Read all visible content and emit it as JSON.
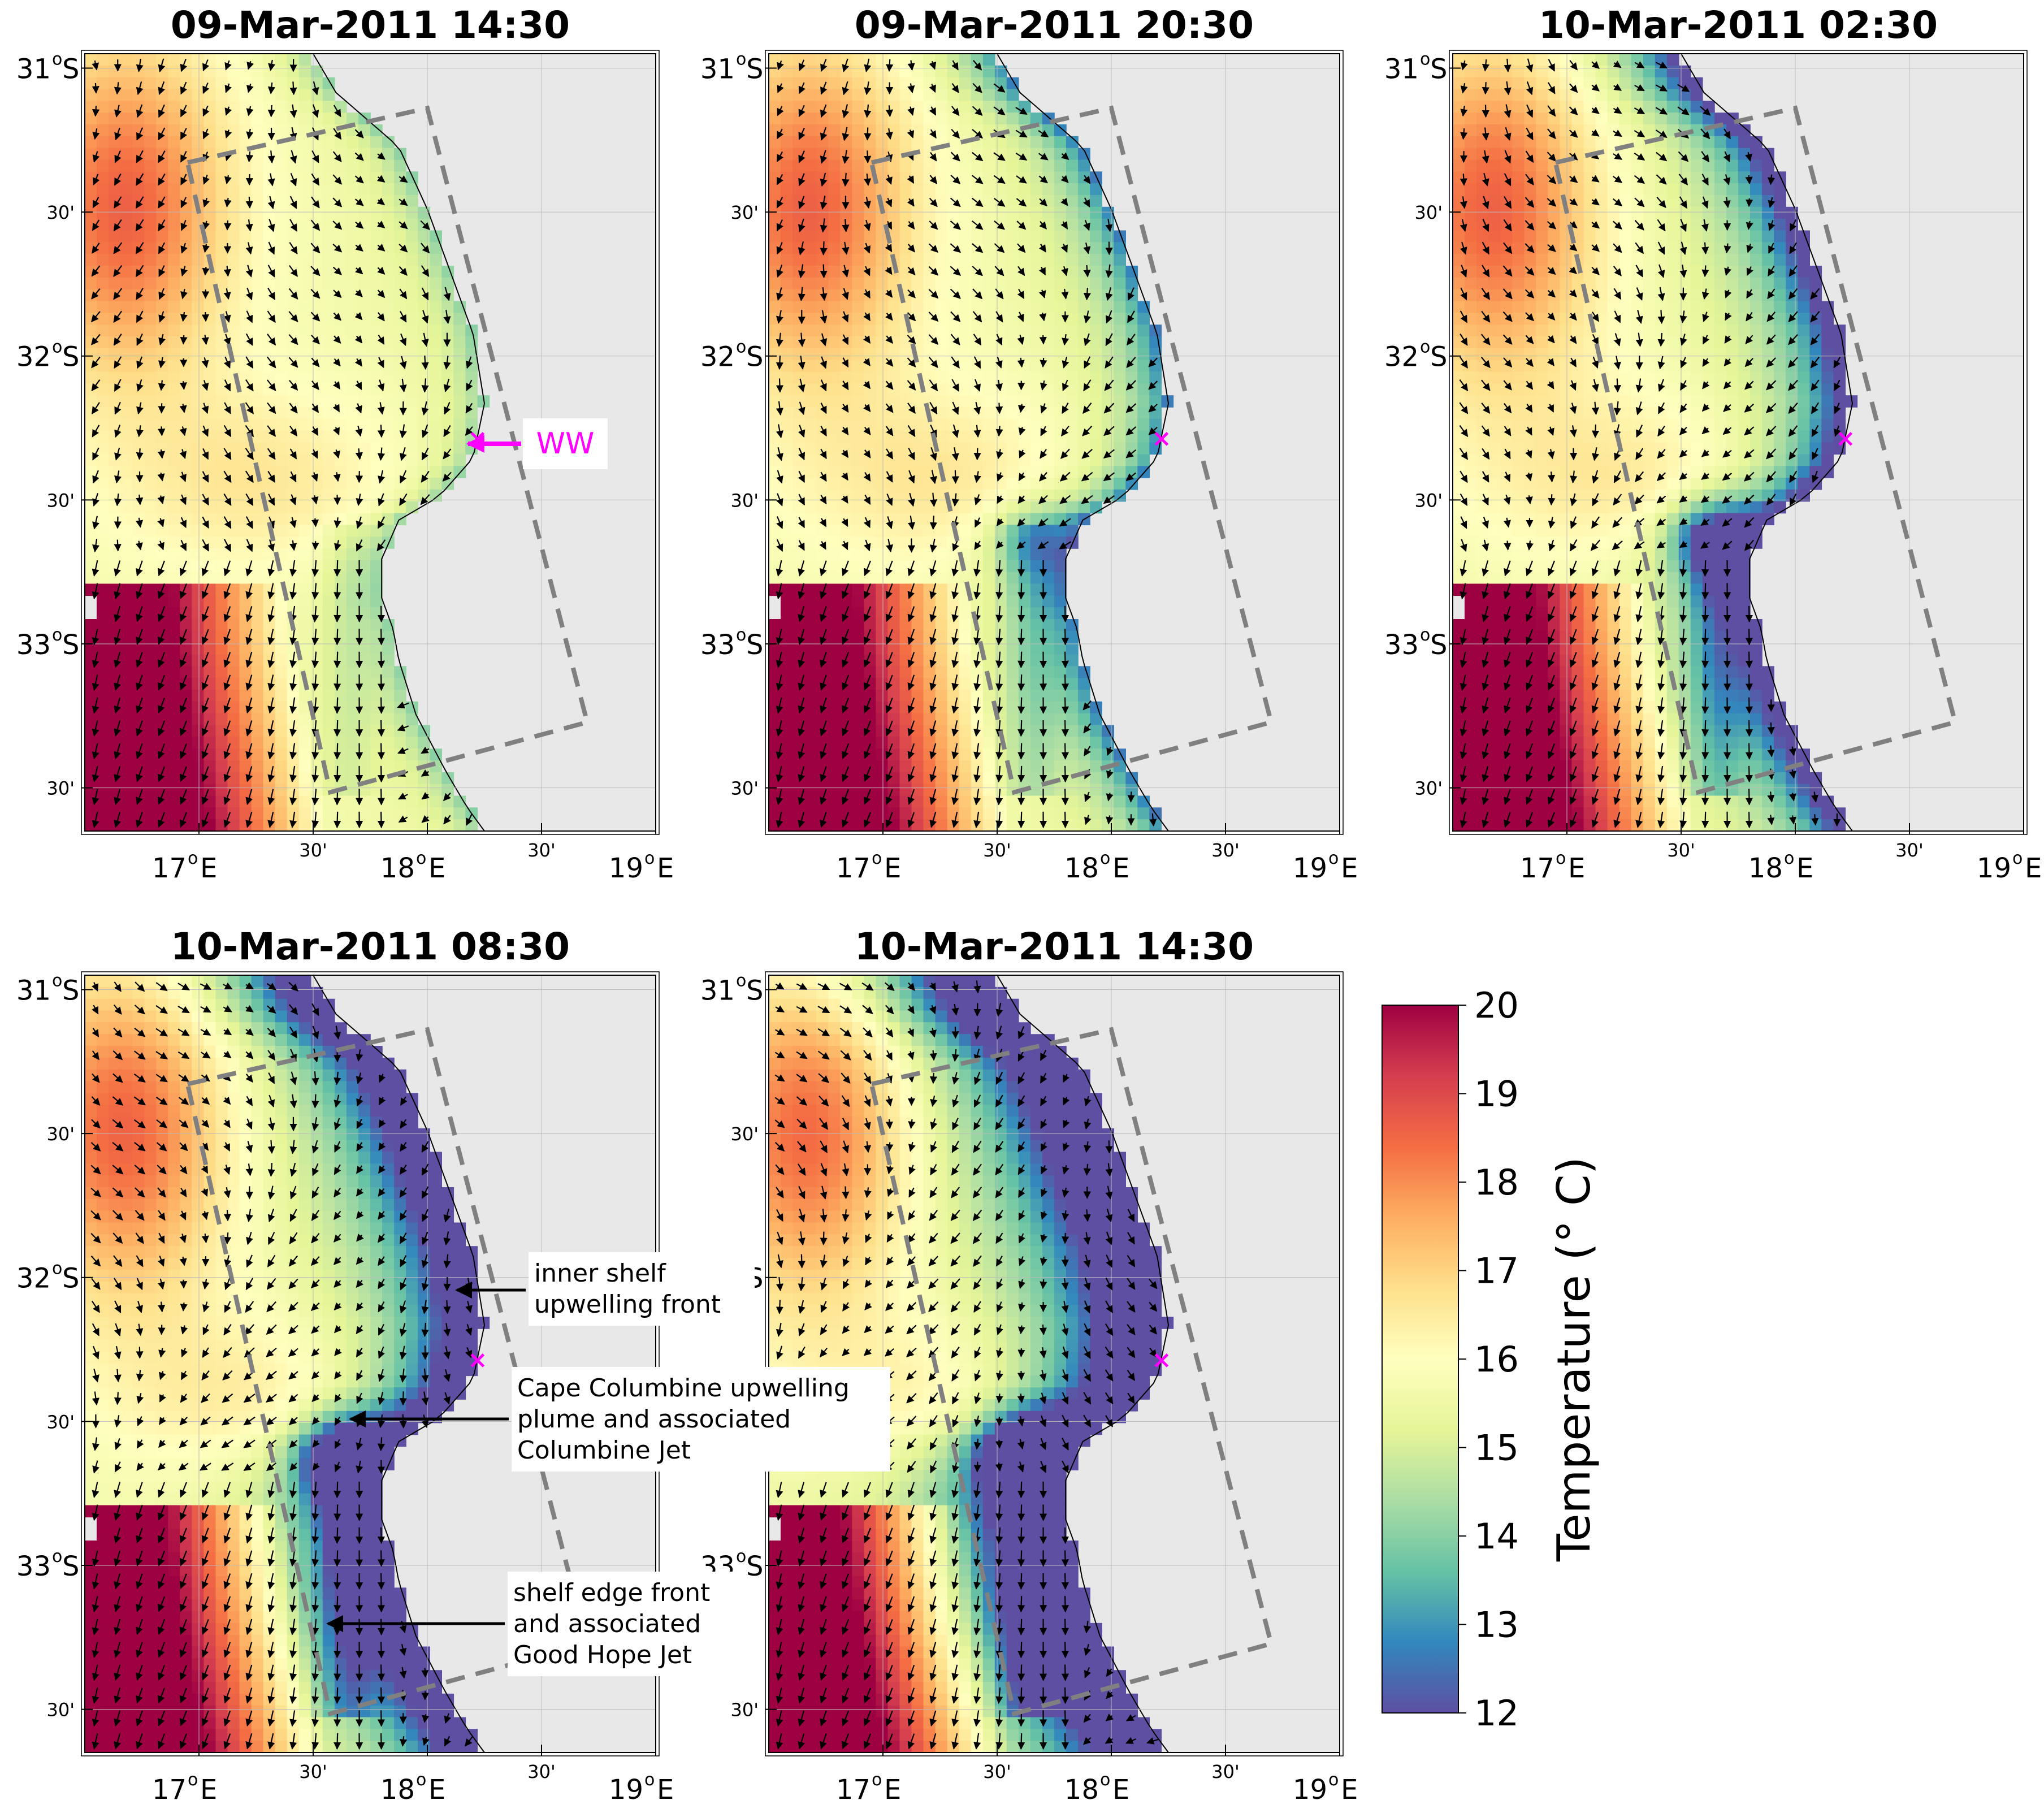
{
  "figure": {
    "panel_titles": [
      "09-Mar-2011 14:30",
      "09-Mar-2011 20:30",
      "10-Mar-2011 02:30",
      "10-Mar-2011 08:30",
      "10-Mar-2011 14:30"
    ],
    "lat_labels": [
      "31",
      "S",
      "30'",
      "32",
      "S",
      "30'",
      "33",
      "S",
      "30'"
    ],
    "lon_labels": [
      "17",
      "E",
      "30'",
      "18",
      "E",
      "30'",
      "19",
      "E"
    ],
    "degree_symbol": "o",
    "station_marker": "×",
    "annotations": {
      "ww": "WW",
      "inner_shelf": [
        "inner shelf",
        "upwelling front"
      ],
      "cape_columbine": [
        "Cape Columbine upwelling",
        "plume and associated",
        "Columbine Jet"
      ],
      "shelf_edge": [
        "shelf edge front",
        "and associated",
        "Good Hope Jet"
      ]
    },
    "colorbar": {
      "label": "Temperature (° C)",
      "ticks": [
        "20",
        "19",
        "18",
        "17",
        "16",
        "15",
        "14",
        "13",
        "12"
      ]
    }
  },
  "chart_data": {
    "type": "heatmap",
    "variable": "sea surface temperature with surface current vectors",
    "panels": [
      {
        "title": "09-Mar-2011 14:30",
        "has_ww_label": true
      },
      {
        "title": "09-Mar-2011 20:30"
      },
      {
        "title": "10-Mar-2011 02:30"
      },
      {
        "title": "10-Mar-2011 08:30",
        "has_front_annotations": true
      },
      {
        "title": "10-Mar-2011 14:30"
      }
    ],
    "lon_range": [
      16.5,
      19.0
    ],
    "lat_range": [
      -33.65,
      -30.95
    ],
    "lon_ticks": [
      17.0,
      17.5,
      18.0,
      18.5,
      19.0
    ],
    "lat_ticks": [
      -31.0,
      -31.5,
      -32.0,
      -32.5,
      -33.0,
      -33.5
    ],
    "station_WW": {
      "lon": 18.22,
      "lat": -32.29
    },
    "colorbar": {
      "vmin": 12,
      "vmax": 20,
      "colormap": "Spectral_r",
      "units": "° C"
    },
    "grid": true,
    "land_color": "#e8e8e8",
    "marker_color": "#ff00ff",
    "box_color": "#808080"
  }
}
